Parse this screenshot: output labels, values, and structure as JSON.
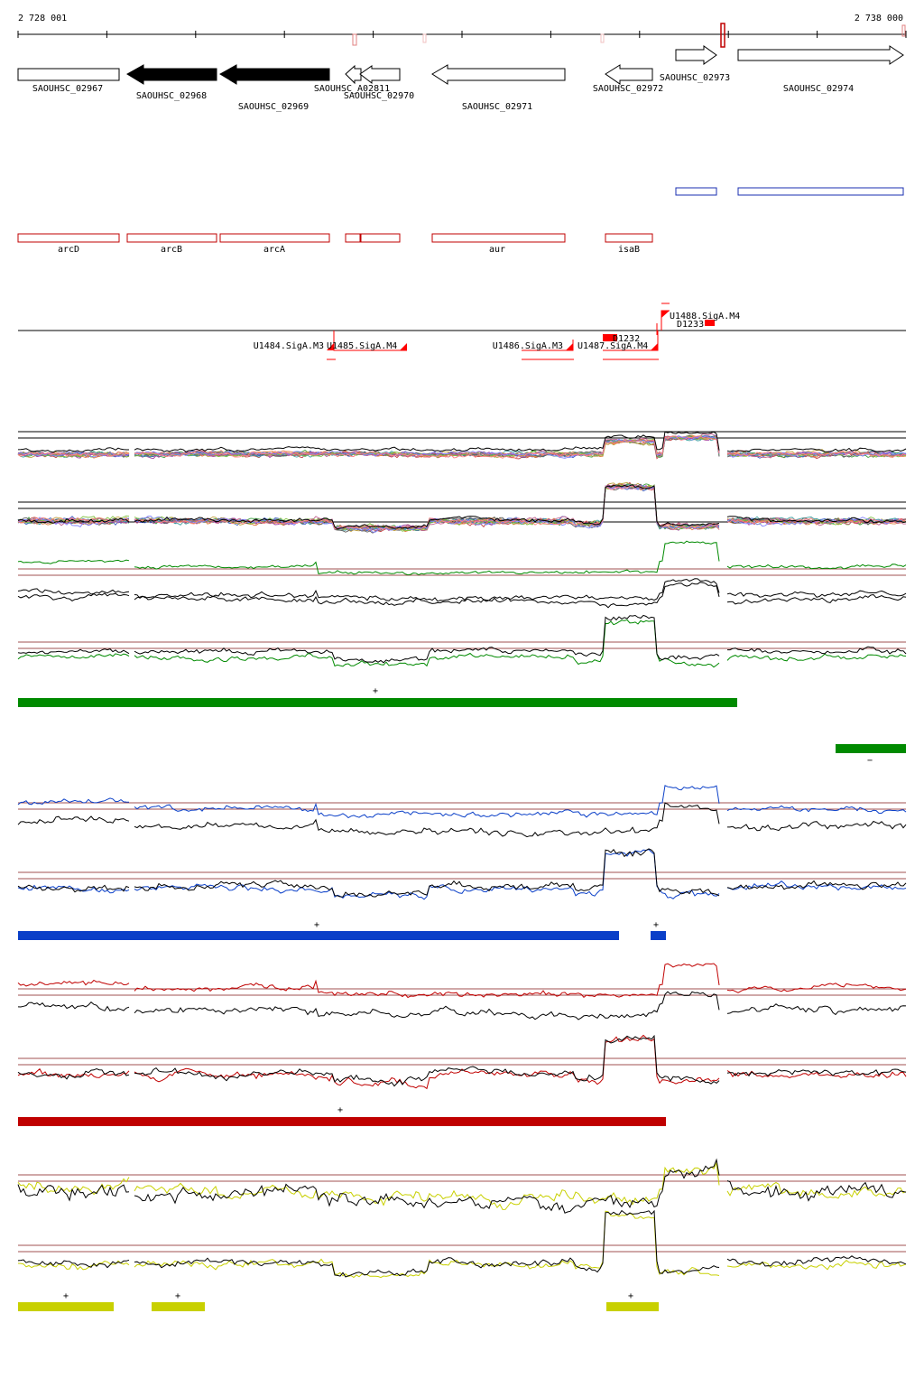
{
  "ruler": {
    "start": "2 728 001",
    "end": "2 738 000"
  },
  "colors": {
    "cds_fill_dark": "#000000",
    "gene_outline": "#c00000",
    "operon_outline": "#1a2fb0",
    "promoter_red": "#ff0000",
    "green": "#008a00",
    "blue": "#0a3fc8",
    "red": "#c00000",
    "yellow": "#c8d000",
    "guide": "#a05050"
  },
  "cds": [
    {
      "name": "SAOUHSC_02967"
    },
    {
      "name": "SAOUHSC_02968"
    },
    {
      "name": "SAOUHSC_02969"
    },
    {
      "name": "SAOUHSC_A02811"
    },
    {
      "name": "SAOUHSC_02970"
    },
    {
      "name": "SAOUHSC_02971"
    },
    {
      "name": "SAOUHSC_02972"
    },
    {
      "name": "SAOUHSC_02973"
    },
    {
      "name": "SAOUHSC_02974"
    }
  ],
  "genes": [
    "arcD",
    "arcB",
    "arcA",
    "aur",
    "isaB"
  ],
  "promoters": [
    {
      "name": "U1484.SigA.M3"
    },
    {
      "name": "U1485.SigA.M4"
    },
    {
      "name": "U1486.SigA.M3"
    },
    {
      "name": "U1487.SigA.M4"
    },
    {
      "name": "U1488.SigA.M4"
    },
    {
      "name": "D1233"
    },
    {
      "name": "D1232"
    }
  ],
  "strand_marks": {
    "green_plus": "+",
    "green_minus": "−",
    "blue_plus_1": "+",
    "blue_plus_2": "+",
    "red_plus": "+",
    "yellow_plus_1": "+",
    "yellow_plus_2": "+",
    "yellow_plus_3": "+"
  }
}
